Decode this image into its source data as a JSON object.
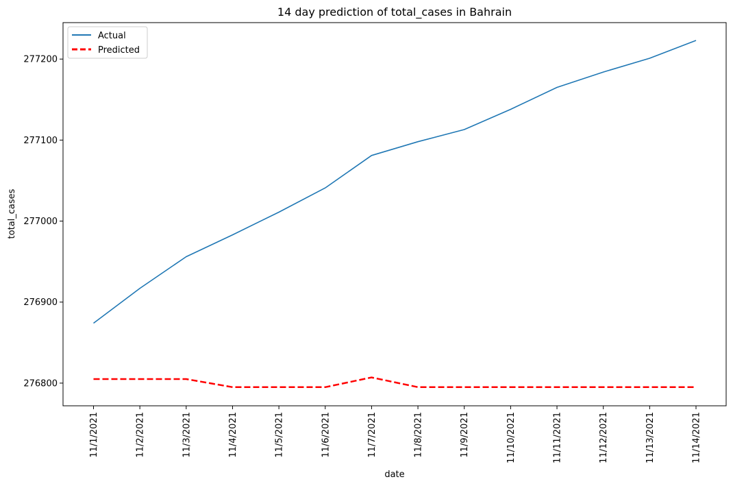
{
  "chart_data": {
    "type": "line",
    "title": "14 day prediction of total_cases in Bahrain",
    "xlabel": "date",
    "ylabel": "total_cases",
    "categories": [
      "11/1/2021",
      "11/2/2021",
      "11/3/2021",
      "11/4/2021",
      "11/5/2021",
      "11/6/2021",
      "11/7/2021",
      "11/8/2021",
      "11/9/2021",
      "11/10/2021",
      "11/11/2021",
      "11/12/2021",
      "11/13/2021",
      "11/14/2021"
    ],
    "yticks": [
      276800,
      276900,
      277000,
      277100,
      277200
    ],
    "ylim": [
      276772,
      277245
    ],
    "grid": false,
    "legend_position": "top-left",
    "series": [
      {
        "name": "Actual",
        "color": "#1f77b4",
        "style": "solid",
        "values": [
          276874,
          276917,
          276956,
          276983,
          277011,
          277041,
          277081,
          277098,
          277113,
          277138,
          277165,
          277184,
          277201,
          277223
        ]
      },
      {
        "name": "Predicted",
        "color": "#ff0000",
        "style": "dashed",
        "values": [
          276805,
          276805,
          276805,
          276795,
          276795,
          276795,
          276807,
          276795,
          276795,
          276795,
          276795,
          276795,
          276795,
          276795
        ]
      }
    ]
  }
}
